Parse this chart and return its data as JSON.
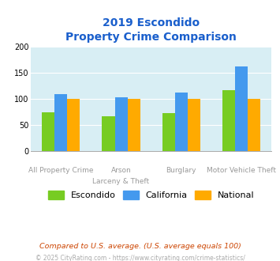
{
  "title_line1": "2019 Escondido",
  "title_line2": "Property Crime Comparison",
  "escondido": [
    75,
    68,
    74,
    118
  ],
  "california": [
    110,
    103,
    113,
    163
  ],
  "national": [
    100,
    100,
    100,
    100
  ],
  "escondido_color": "#77cc22",
  "california_color": "#4499ee",
  "national_color": "#ffaa00",
  "ylim": [
    0,
    200
  ],
  "yticks": [
    0,
    50,
    100,
    150,
    200
  ],
  "background_color": "#d8eef4",
  "title_color": "#1a5fcc",
  "label_color": "#999999",
  "footer_note": "Compared to U.S. average. (U.S. average equals 100)",
  "footer_credit": "© 2025 CityRating.com - https://www.cityrating.com/crime-statistics/",
  "footer_note_color": "#cc4400",
  "footer_credit_color": "#aaaaaa",
  "legend_labels": [
    "Escondido",
    "California",
    "National"
  ],
  "bar_width": 0.21,
  "n_groups": 4
}
